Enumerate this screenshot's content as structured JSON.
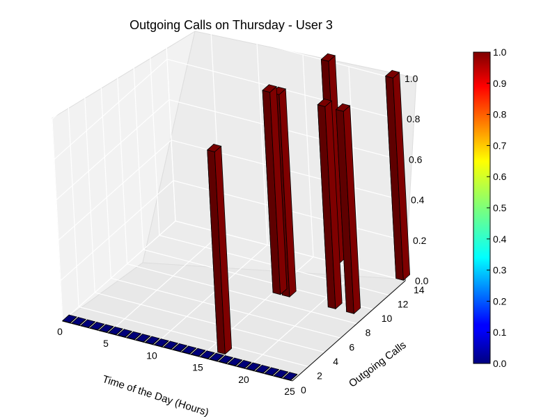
{
  "chart_data": {
    "type": "bar3d",
    "title": "Outgoing Calls on Thursday - User 3",
    "xlabel": "Time of the Day (Hours)",
    "ylabel": "Outgoing Calls",
    "zlabel": "",
    "xlim": [
      0,
      25
    ],
    "ylim": [
      0,
      14
    ],
    "zlim": [
      0,
      1
    ],
    "x_ticks": [
      "0",
      "5",
      "10",
      "15",
      "20",
      "25"
    ],
    "y_ticks": [
      "0",
      "2",
      "4",
      "6",
      "8",
      "10",
      "12",
      "14"
    ],
    "z_ticks": [
      "0.0",
      "0.2",
      "0.4",
      "0.6",
      "0.8",
      "1.0"
    ],
    "colormap": "jet",
    "colorbar_ticks": [
      "0.0",
      "0.1",
      "0.2",
      "0.3",
      "0.4",
      "0.5",
      "0.6",
      "0.7",
      "0.8",
      "0.9",
      "1.0"
    ],
    "colorbar_range": [
      0,
      1
    ],
    "grid": true,
    "bars": [
      {
        "hour": 15,
        "calls": 9,
        "height": 1.0
      },
      {
        "hour": 16,
        "calls": 9,
        "height": 1.0
      },
      {
        "hour": 16,
        "calls": 1,
        "height": 1.0
      },
      {
        "hour": 17,
        "calls": 14,
        "height": 1.0
      },
      {
        "hour": 21,
        "calls": 9,
        "height": 1.0
      },
      {
        "hour": 23,
        "calls": 9,
        "height": 1.0
      },
      {
        "hour": 24,
        "calls": 14,
        "height": 1.0
      }
    ],
    "zero_row": {
      "calls": 0,
      "hours_from": 0,
      "hours_to": 24,
      "height": 0.0
    }
  }
}
